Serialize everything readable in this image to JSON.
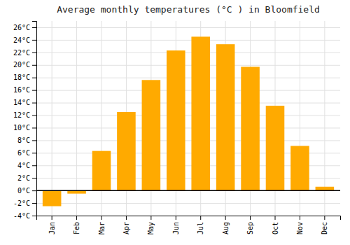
{
  "chart_data": {
    "type": "bar",
    "title": "Average monthly temperatures (°C ) in Bloomfield",
    "categories": [
      "Jan",
      "Feb",
      "Mar",
      "Apr",
      "May",
      "Jun",
      "Jul",
      "Aug",
      "Sep",
      "Oct",
      "Nov",
      "Dec"
    ],
    "values": [
      -2.5,
      -0.5,
      6.3,
      12.5,
      17.6,
      22.3,
      24.5,
      23.3,
      19.7,
      13.5,
      7.1,
      0.6
    ],
    "color": "#FFAA00",
    "ylim": [
      -4,
      27
    ],
    "yticks": [
      {
        "value": -4,
        "label": "-4°C"
      },
      {
        "value": -2,
        "label": "-2°C"
      },
      {
        "value": 0,
        "label": "0°C"
      },
      {
        "value": 2,
        "label": "2°C"
      },
      {
        "value": 4,
        "label": "4°C"
      },
      {
        "value": 6,
        "label": "6°C"
      },
      {
        "value": 8,
        "label": "8°C"
      },
      {
        "value": 10,
        "label": "10°C"
      },
      {
        "value": 12,
        "label": "12°C"
      },
      {
        "value": 14,
        "label": "14°C"
      },
      {
        "value": 16,
        "label": "16°C"
      },
      {
        "value": 18,
        "label": "18°C"
      },
      {
        "value": 20,
        "label": "20°C"
      },
      {
        "value": 22,
        "label": "22°C"
      },
      {
        "value": 24,
        "label": "24°C"
      },
      {
        "value": 26,
        "label": "26°C"
      }
    ],
    "grid": true
  }
}
